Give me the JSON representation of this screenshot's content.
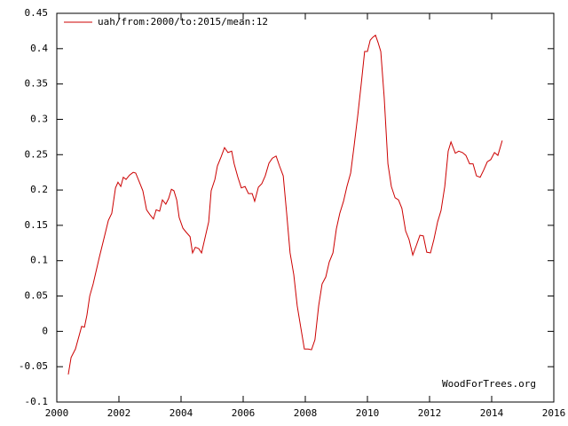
{
  "chart_data": {
    "type": "line",
    "legend_position": "top-left",
    "annotation": "WoodForTrees.org",
    "x": [
      2000.37,
      2000.46,
      2000.6,
      2000.8,
      2000.89,
      2000.97,
      2001.06,
      2001.17,
      2001.37,
      2001.51,
      2001.66,
      2001.77,
      2001.89,
      2001.97,
      2002.06,
      2002.14,
      2002.23,
      2002.34,
      2002.46,
      2002.54,
      2002.66,
      2002.77,
      2002.89,
      2003.0,
      2003.11,
      2003.2,
      2003.31,
      2003.4,
      2003.51,
      2003.6,
      2003.69,
      2003.77,
      2003.86,
      2003.94,
      2004.06,
      2004.17,
      2004.29,
      2004.37,
      2004.46,
      2004.57,
      2004.66,
      2004.77,
      2004.89,
      2004.97,
      2005.09,
      2005.17,
      2005.29,
      2005.4,
      2005.51,
      2005.63,
      2005.71,
      2005.83,
      2005.94,
      2006.06,
      2006.17,
      2006.29,
      2006.37,
      2006.49,
      2006.6,
      2006.71,
      2006.83,
      2006.94,
      2007.06,
      2007.17,
      2007.29,
      2007.4,
      2007.51,
      2007.63,
      2007.74,
      2007.86,
      2007.97,
      2008.09,
      2008.2,
      2008.31,
      2008.43,
      2008.54,
      2008.66,
      2008.77,
      2008.89,
      2009.0,
      2009.11,
      2009.23,
      2009.34,
      2009.46,
      2009.57,
      2009.69,
      2009.8,
      2009.91,
      2010.0,
      2010.09,
      2010.17,
      2010.26,
      2010.34,
      2010.43,
      2010.54,
      2010.66,
      2010.77,
      2010.89,
      2011.0,
      2011.11,
      2011.23,
      2011.34,
      2011.46,
      2011.57,
      2011.69,
      2011.8,
      2011.91,
      2012.03,
      2012.14,
      2012.26,
      2012.37,
      2012.49,
      2012.6,
      2012.69,
      2012.83,
      2012.94,
      2013.06,
      2013.17,
      2013.29,
      2013.4,
      2013.51,
      2013.63,
      2013.74,
      2013.86,
      2013.97,
      2014.09,
      2014.2,
      2014.34
    ],
    "series": [
      {
        "name": "uah/from:2000/to:2015/mean:12",
        "color": "#cc0000",
        "values": [
          -0.061,
          -0.037,
          -0.025,
          0.007,
          0.006,
          0.023,
          0.05,
          0.067,
          0.105,
          0.13,
          0.157,
          0.167,
          0.203,
          0.211,
          0.205,
          0.218,
          0.215,
          0.221,
          0.225,
          0.224,
          0.211,
          0.199,
          0.172,
          0.165,
          0.159,
          0.172,
          0.17,
          0.186,
          0.18,
          0.188,
          0.201,
          0.199,
          0.186,
          0.161,
          0.146,
          0.14,
          0.134,
          0.111,
          0.119,
          0.117,
          0.111,
          0.132,
          0.155,
          0.199,
          0.215,
          0.234,
          0.247,
          0.26,
          0.253,
          0.255,
          0.237,
          0.218,
          0.203,
          0.205,
          0.195,
          0.195,
          0.184,
          0.204,
          0.209,
          0.22,
          0.238,
          0.245,
          0.248,
          0.234,
          0.22,
          0.167,
          0.111,
          0.08,
          0.036,
          0.004,
          -0.025,
          -0.025,
          -0.026,
          -0.012,
          0.036,
          0.067,
          0.077,
          0.098,
          0.111,
          0.145,
          0.167,
          0.184,
          0.205,
          0.224,
          0.262,
          0.306,
          0.35,
          0.396,
          0.396,
          0.412,
          0.416,
          0.419,
          0.409,
          0.396,
          0.331,
          0.237,
          0.205,
          0.189,
          0.186,
          0.174,
          0.142,
          0.13,
          0.108,
          0.121,
          0.136,
          0.135,
          0.112,
          0.111,
          0.13,
          0.155,
          0.171,
          0.205,
          0.255,
          0.268,
          0.252,
          0.255,
          0.253,
          0.249,
          0.237,
          0.237,
          0.22,
          0.218,
          0.228,
          0.24,
          0.243,
          0.253,
          0.249,
          0.27
        ]
      }
    ],
    "xlim": [
      2000,
      2016
    ],
    "xticks": [
      2000,
      2002,
      2004,
      2006,
      2008,
      2010,
      2012,
      2014,
      2016
    ],
    "ylim": [
      -0.1,
      0.45
    ],
    "yticks": [
      -0.1,
      -0.05,
      0,
      0.05,
      0.1,
      0.15,
      0.2,
      0.25,
      0.3,
      0.35,
      0.4,
      0.45
    ]
  }
}
